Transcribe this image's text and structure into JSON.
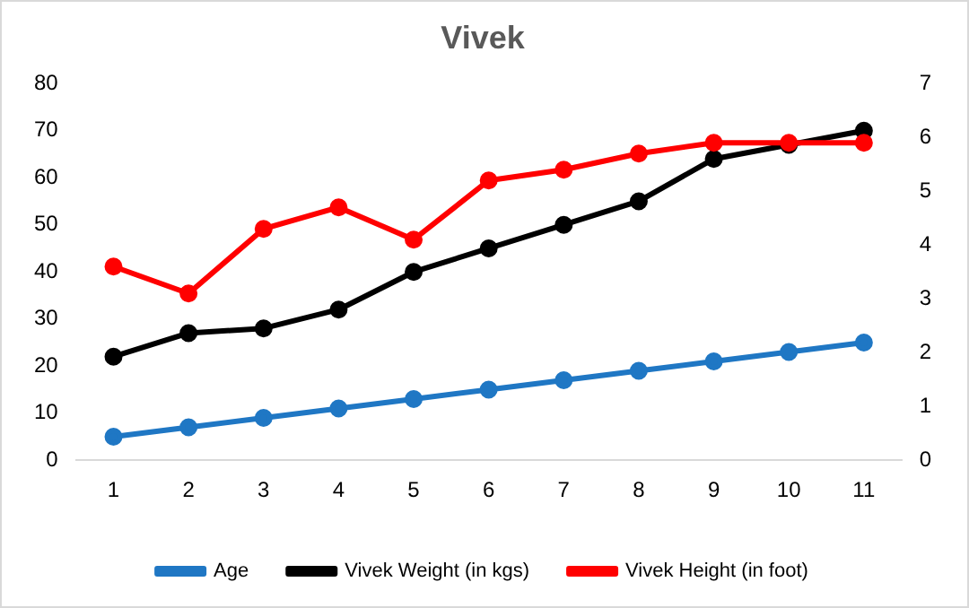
{
  "chart_data": {
    "type": "line",
    "title": "Vivek",
    "categories": [
      "1",
      "2",
      "3",
      "4",
      "5",
      "6",
      "7",
      "8",
      "9",
      "10",
      "11"
    ],
    "series": [
      {
        "name": "Age",
        "color": "#1f77c4",
        "values": [
          5,
          7,
          9,
          11,
          13,
          15,
          17,
          19,
          21,
          23,
          25
        ]
      },
      {
        "name": "Vivek Weight (in kgs)",
        "color": "#000000",
        "values": [
          22,
          27,
          28,
          32,
          40,
          45,
          50,
          55,
          64,
          67,
          70
        ]
      },
      {
        "name": "Vivek Height (in foot)",
        "color": "#ff0000",
        "axis": "y2",
        "values": [
          3.6,
          3.1,
          4.3,
          4.7,
          4.1,
          5.2,
          5.4,
          5.7,
          5.9,
          5.9,
          5.9
        ]
      }
    ],
    "ylim": [
      0,
      80
    ],
    "yticks": [
      0,
      10,
      20,
      30,
      40,
      50,
      60,
      70,
      80
    ],
    "y2lim": [
      0,
      7
    ],
    "y2ticks": [
      0,
      1,
      2,
      3,
      4,
      5,
      6,
      7
    ],
    "grid": false,
    "legend": "bottom",
    "marker": "circle",
    "line_style": "solid"
  }
}
